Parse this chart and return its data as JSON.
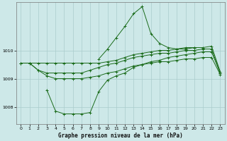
{
  "title": "Graphe pression niveau de la mer (hPa)",
  "bg_color": "#cde8e8",
  "grid_color": "#aacccc",
  "line_color": "#1a6b1a",
  "marker": "+",
  "xlim": [
    -0.5,
    23.5
  ],
  "ylim": [
    1007.4,
    1011.7
  ],
  "yticks": [
    1008,
    1009,
    1010
  ],
  "xticks": [
    0,
    1,
    2,
    3,
    4,
    5,
    6,
    7,
    8,
    9,
    10,
    11,
    12,
    13,
    14,
    15,
    16,
    17,
    18,
    19,
    20,
    21,
    22,
    23
  ],
  "line1_x": [
    0,
    1,
    2,
    3,
    4,
    5,
    6,
    7,
    8,
    9,
    10,
    11,
    12,
    13,
    14,
    15,
    16,
    17,
    18,
    19,
    20,
    21,
    22,
    23
  ],
  "line1_y": [
    1009.55,
    1009.55,
    1009.55,
    1009.55,
    1009.55,
    1009.55,
    1009.55,
    1009.55,
    1009.55,
    1009.55,
    1009.6,
    1009.65,
    1009.75,
    1009.85,
    1009.9,
    1009.95,
    1010.0,
    1010.0,
    1010.05,
    1010.1,
    1010.1,
    1010.1,
    1010.15,
    1009.25
  ],
  "line2_x": [
    0,
    1,
    2,
    3,
    4,
    5,
    6,
    7,
    8,
    9,
    10,
    11,
    12,
    13,
    14,
    15,
    16,
    17,
    18,
    19,
    20,
    21,
    22,
    23
  ],
  "line2_y": [
    1009.55,
    1009.55,
    1009.3,
    1009.2,
    1009.2,
    1009.2,
    1009.2,
    1009.2,
    1009.3,
    1009.4,
    1009.5,
    1009.55,
    1009.65,
    1009.75,
    1009.8,
    1009.85,
    1009.9,
    1009.9,
    1009.95,
    1010.0,
    1010.0,
    1010.05,
    1010.05,
    1009.2
  ],
  "line3_x": [
    3,
    4,
    5,
    6,
    7,
    8,
    9,
    10,
    11,
    12,
    13,
    14,
    15,
    16,
    17,
    18,
    19,
    20,
    21,
    22,
    23
  ],
  "line3_y": [
    1008.6,
    1007.85,
    1007.75,
    1007.75,
    1007.75,
    1007.8,
    1008.55,
    1008.95,
    1009.1,
    1009.2,
    1009.4,
    1009.5,
    1009.6,
    1009.65,
    1009.75,
    1009.8,
    1009.85,
    1009.9,
    1009.95,
    1009.95,
    1009.2
  ],
  "line4_x": [
    0,
    1,
    2,
    3,
    4,
    5,
    6,
    7,
    8,
    9,
    10,
    11,
    12,
    13,
    14,
    15,
    16,
    17,
    18,
    19,
    20,
    21,
    22,
    23
  ],
  "line4_y": [
    1009.55,
    1009.55,
    1009.3,
    1009.1,
    1009.0,
    1009.0,
    1009.0,
    1009.0,
    1009.05,
    1009.1,
    1009.2,
    1009.25,
    1009.35,
    1009.45,
    1009.5,
    1009.55,
    1009.6,
    1009.6,
    1009.65,
    1009.7,
    1009.7,
    1009.75,
    1009.75,
    1009.15
  ],
  "spike_x": [
    9,
    10,
    11,
    12,
    13,
    14,
    15,
    16,
    17,
    18,
    19,
    20
  ],
  "spike_y": [
    1009.7,
    1010.05,
    1010.45,
    1010.85,
    1011.3,
    1011.55,
    1010.6,
    1010.25,
    1010.1,
    1010.05,
    1010.05,
    1010.1
  ]
}
